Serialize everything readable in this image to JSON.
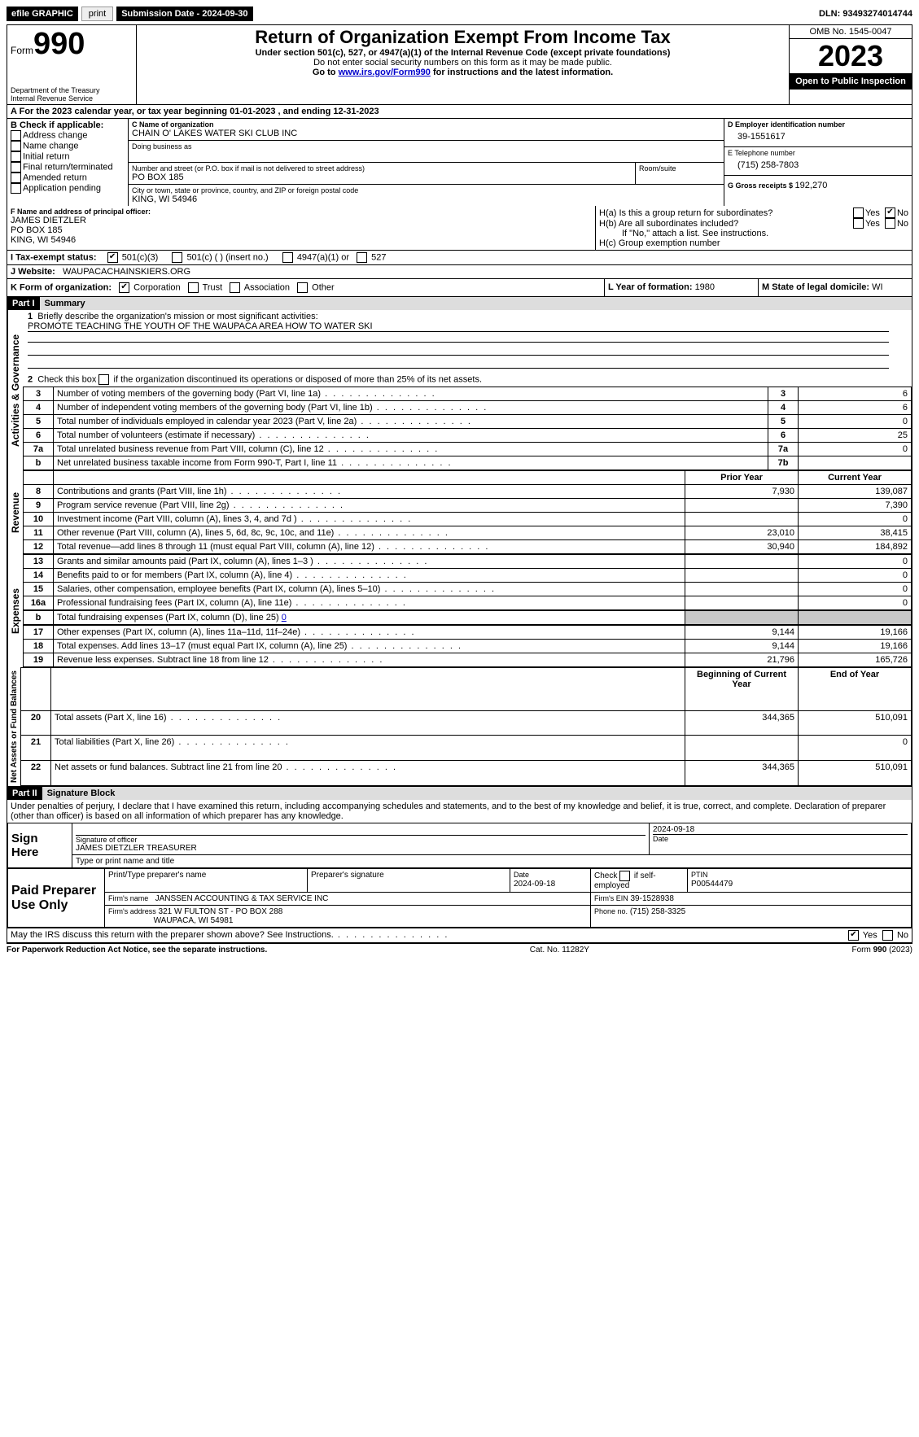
{
  "toolbar": {
    "efile": "efile GRAPHIC",
    "print": "print",
    "subdate_label": "Submission Date - ",
    "subdate": "2024-09-30",
    "dln_label": "DLN: ",
    "dln": "93493274014744"
  },
  "header": {
    "form_word": "Form",
    "form_no": "990",
    "dept": "Department of the Treasury\nInternal Revenue Service",
    "title": "Return of Organization Exempt From Income Tax",
    "sub1": "Under section 501(c), 527, or 4947(a)(1) of the Internal Revenue Code (except private foundations)",
    "sub2": "Do not enter social security numbers on this form as it may be made public.",
    "sub3_pre": "Go to ",
    "sub3_link": "www.irs.gov/Form990",
    "sub3_post": " for instructions and the latest information.",
    "omb": "OMB No. 1545-0047",
    "year": "2023",
    "open": "Open to Public Inspection"
  },
  "A": {
    "text_pre": "For the 2023 calendar year, or tax year beginning ",
    "begin": "01-01-2023",
    "mid": " , and ending ",
    "end": "12-31-2023"
  },
  "B": {
    "label": "B Check if applicable:",
    "items": [
      "Address change",
      "Name change",
      "Initial return",
      "Final return/terminated",
      "Amended return",
      "Application pending"
    ]
  },
  "C": {
    "name_label": "C Name of organization",
    "name": "CHAIN O' LAKES WATER SKI CLUB INC",
    "dba_label": "Doing business as",
    "street_label": "Number and street (or P.O. box if mail is not delivered to street address)",
    "room_label": "Room/suite",
    "street": "PO BOX 185",
    "city_label": "City or town, state or province, country, and ZIP or foreign postal code",
    "city": "KING, WI  54946"
  },
  "D": {
    "label": "D Employer identification number",
    "val": "39-1551617"
  },
  "E": {
    "label": "E Telephone number",
    "val": "(715) 258-7803"
  },
  "G": {
    "label": "G Gross receipts $ ",
    "val": "192,270"
  },
  "F": {
    "label": "F  Name and address of principal officer:",
    "l1": "JAMES DIETZLER",
    "l2": "PO BOX 185",
    "l3": "KING, WI  54946"
  },
  "H": {
    "a": "H(a)  Is this a group return for subordinates?",
    "b": "H(b)  Are all subordinates included?",
    "bno": "If \"No,\" attach a list. See instructions.",
    "c": "H(c)  Group exemption number",
    "yes": "Yes",
    "no": "No"
  },
  "I": {
    "label": "I  Tax-exempt status:",
    "o1": "501(c)(3)",
    "o2": "501(c) (  ) (insert no.)",
    "o3": "4947(a)(1) or",
    "o4": "527"
  },
  "J": {
    "label": "J  Website:",
    "val": "WAUPACACHAINSKIERS.ORG"
  },
  "K": {
    "label": "K Form of organization:",
    "o1": "Corporation",
    "o2": "Trust",
    "o3": "Association",
    "o4": "Other"
  },
  "L": {
    "label": "L Year of formation: ",
    "val": "1980"
  },
  "M": {
    "label": "M State of legal domicile: ",
    "val": "WI"
  },
  "part1": {
    "hdr": "Part I",
    "title": "Summary"
  },
  "gov": {
    "label": "Activities & Governance",
    "l1": "Briefly describe the organization's mission or most significant activities:",
    "mission": "PROMOTE TEACHING THE YOUTH OF THE WAUPACA AREA HOW TO WATER SKI",
    "l2": "Check this box       if the organization discontinued its operations or disposed of more than 25% of its net assets."
  },
  "rows_gov": [
    {
      "n": "3",
      "t": "Number of voting members of the governing body (Part VI, line 1a)",
      "ln": "3",
      "v": "6"
    },
    {
      "n": "4",
      "t": "Number of independent voting members of the governing body (Part VI, line 1b)",
      "ln": "4",
      "v": "6"
    },
    {
      "n": "5",
      "t": "Total number of individuals employed in calendar year 2023 (Part V, line 2a)",
      "ln": "5",
      "v": "0"
    },
    {
      "n": "6",
      "t": "Total number of volunteers (estimate if necessary)",
      "ln": "6",
      "v": "25"
    },
    {
      "n": "7a",
      "t": "Total unrelated business revenue from Part VIII, column (C), line 12",
      "ln": "7a",
      "v": "0"
    },
    {
      "n": "b",
      "t": "Net unrelated business taxable income from Form 990-T, Part I, line 11",
      "ln": "7b",
      "v": ""
    }
  ],
  "cols": {
    "prior": "Prior Year",
    "current": "Current Year",
    "begin": "Beginning of Current Year",
    "end": "End of Year"
  },
  "rev": {
    "label": "Revenue",
    "rows": [
      {
        "n": "8",
        "t": "Contributions and grants (Part VIII, line 1h)",
        "p": "7,930",
        "c": "139,087"
      },
      {
        "n": "9",
        "t": "Program service revenue (Part VIII, line 2g)",
        "p": "",
        "c": "7,390"
      },
      {
        "n": "10",
        "t": "Investment income (Part VIII, column (A), lines 3, 4, and 7d )",
        "p": "",
        "c": "0"
      },
      {
        "n": "11",
        "t": "Other revenue (Part VIII, column (A), lines 5, 6d, 8c, 9c, 10c, and 11e)",
        "p": "23,010",
        "c": "38,415"
      },
      {
        "n": "12",
        "t": "Total revenue—add lines 8 through 11 (must equal Part VIII, column (A), line 12)",
        "p": "30,940",
        "c": "184,892"
      }
    ]
  },
  "exp": {
    "label": "Expenses",
    "rows": [
      {
        "n": "13",
        "t": "Grants and similar amounts paid (Part IX, column (A), lines 1–3 )",
        "p": "",
        "c": "0"
      },
      {
        "n": "14",
        "t": "Benefits paid to or for members (Part IX, column (A), line 4)",
        "p": "",
        "c": "0"
      },
      {
        "n": "15",
        "t": "Salaries, other compensation, employee benefits (Part IX, column (A), lines 5–10)",
        "p": "",
        "c": "0"
      },
      {
        "n": "16a",
        "t": "Professional fundraising fees (Part IX, column (A), line 11e)",
        "p": "",
        "c": "0"
      }
    ],
    "l16b_pre": "Total fundraising expenses (Part IX, column (D), line 25) ",
    "l16b_val": "0",
    "rows2": [
      {
        "n": "17",
        "t": "Other expenses (Part IX, column (A), lines 11a–11d, 11f–24e)",
        "p": "9,144",
        "c": "19,166"
      },
      {
        "n": "18",
        "t": "Total expenses. Add lines 13–17 (must equal Part IX, column (A), line 25)",
        "p": "9,144",
        "c": "19,166"
      },
      {
        "n": "19",
        "t": "Revenue less expenses. Subtract line 18 from line 12",
        "p": "21,796",
        "c": "165,726"
      }
    ]
  },
  "net": {
    "label": "Net Assets or Fund Balances",
    "rows": [
      {
        "n": "20",
        "t": "Total assets (Part X, line 16)",
        "p": "344,365",
        "c": "510,091"
      },
      {
        "n": "21",
        "t": "Total liabilities (Part X, line 26)",
        "p": "",
        "c": "0"
      },
      {
        "n": "22",
        "t": "Net assets or fund balances. Subtract line 21 from line 20",
        "p": "344,365",
        "c": "510,091"
      }
    ]
  },
  "part2": {
    "hdr": "Part II",
    "title": "Signature Block"
  },
  "perjury": "Under penalties of perjury, I declare that I have examined this return, including accompanying schedules and statements, and to the best of my knowledge and belief, it is true, correct, and complete. Declaration of preparer (other than officer) is based on all information of which preparer has any knowledge.",
  "sign": {
    "here": "Sign Here",
    "sigoff": "Signature of officer",
    "officer": "JAMES DIETZLER  TREASURER",
    "type": "Type or print name and title",
    "date_label": "Date",
    "date": "2024-09-18"
  },
  "paid": {
    "label": "Paid Preparer Use Only",
    "prep_name": "Print/Type preparer's name",
    "prep_sig": "Preparer's signature",
    "date_label": "Date",
    "date": "2024-09-18",
    "check": "Check       if self-employed",
    "ptin_label": "PTIN",
    "ptin": "P00544479",
    "firm_name_label": "Firm's name",
    "firm_name": "JANSSEN ACCOUNTING & TAX SERVICE INC",
    "firm_ein_label": "Firm's EIN",
    "firm_ein": "39-1528938",
    "firm_addr_label": "Firm's address",
    "firm_addr1": "321 W FULTON ST - PO BOX 288",
    "firm_addr2": "WAUPACA, WI  54981",
    "phone_label": "Phone no.",
    "phone": "(715) 258-3325"
  },
  "discuss": {
    "q": "May the IRS discuss this return with the preparer shown above? See Instructions.",
    "yes": "Yes",
    "no": "No"
  },
  "footer": {
    "l": "For Paperwork Reduction Act Notice, see the separate instructions.",
    "c": "Cat. No. 11282Y",
    "r_pre": "Form ",
    "r_b": "990",
    "r_post": " (2023)"
  }
}
